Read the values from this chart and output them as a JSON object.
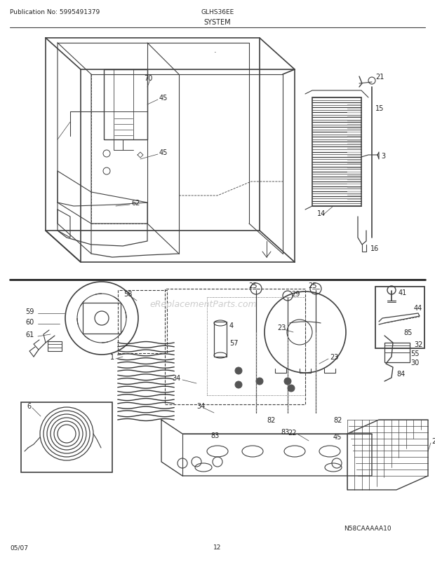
{
  "title": "SYSTEM",
  "pub_no": "Publication No: 5995491379",
  "model": "GLHS36EE",
  "date": "05/07",
  "page": "12",
  "watermark": "eReplacementParts.com",
  "diagram_code": "N58CAAAAA10",
  "bg_color": "#ffffff",
  "lc": "#404040",
  "tc": "#222222",
  "gray": "#888888",
  "darkgray": "#555555"
}
